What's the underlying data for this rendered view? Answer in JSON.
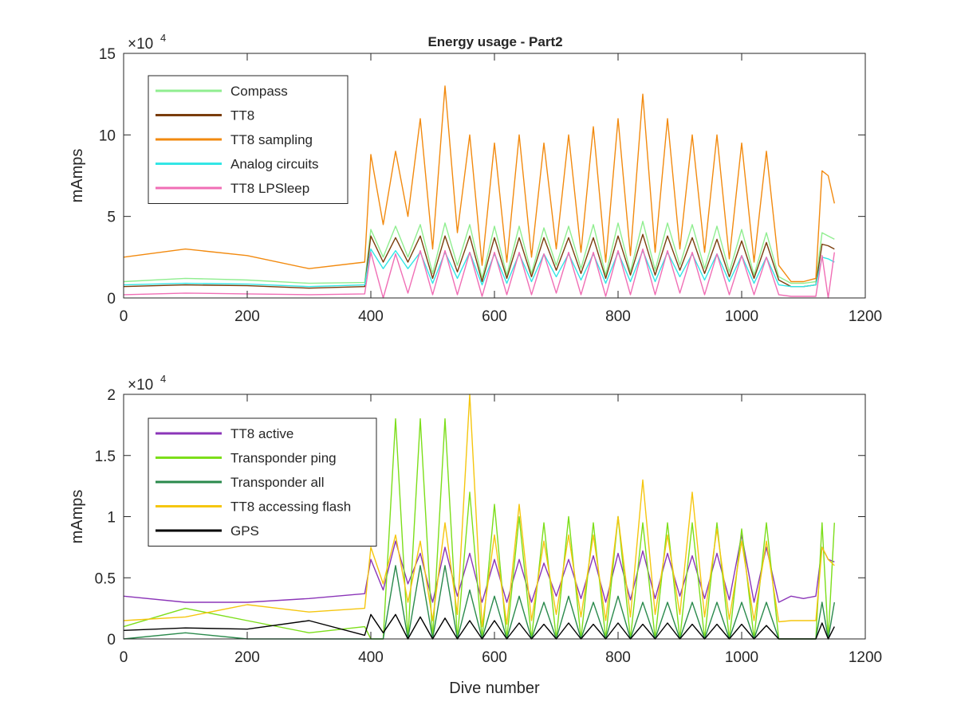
{
  "figure_title": "Energy usage - Part2",
  "chart_data": [
    {
      "type": "line",
      "title": "Energy usage - Part2",
      "xlabel": "",
      "ylabel": "mAmps",
      "xlim": [
        0,
        1200
      ],
      "ylim": [
        0,
        150000
      ],
      "x_ticks": [
        "0",
        "200",
        "400",
        "600",
        "800",
        "1000",
        "1200"
      ],
      "y_ticks": [
        "0",
        "5",
        "10",
        "15"
      ],
      "exponent_label": "×10",
      "exponent_power": "4",
      "grid": false,
      "legend_position": "top-left",
      "x": [
        0,
        100,
        200,
        300,
        390,
        400,
        420,
        440,
        460,
        480,
        500,
        520,
        540,
        560,
        580,
        600,
        620,
        640,
        660,
        680,
        700,
        720,
        740,
        760,
        780,
        800,
        820,
        840,
        860,
        880,
        900,
        920,
        940,
        960,
        980,
        1000,
        1020,
        1040,
        1060,
        1080,
        1100,
        1120,
        1130,
        1140,
        1150
      ],
      "series": [
        {
          "name": "Compass",
          "color": "#90ee90",
          "values": [
            10000,
            12000,
            11000,
            9000,
            9500,
            42000,
            25000,
            44000,
            25000,
            45000,
            15000,
            46000,
            20000,
            45000,
            12000,
            44000,
            14000,
            44000,
            15000,
            43000,
            20000,
            44000,
            18000,
            45000,
            14000,
            46000,
            16000,
            47000,
            17000,
            46000,
            20000,
            45000,
            18000,
            44000,
            16000,
            42000,
            14000,
            40000,
            13000,
            9000,
            9000,
            10000,
            40000,
            38000,
            36000
          ]
        },
        {
          "name": "TT8",
          "color": "#7a3d0c",
          "values": [
            7000,
            8000,
            7500,
            6000,
            7000,
            38000,
            22000,
            37000,
            22000,
            38000,
            12000,
            38000,
            16000,
            38000,
            10000,
            37000,
            12000,
            37000,
            13000,
            37000,
            17000,
            37000,
            15000,
            37000,
            12000,
            38000,
            14000,
            39000,
            14000,
            38000,
            17000,
            37000,
            15000,
            36000,
            13000,
            35000,
            12000,
            34000,
            11000,
            7000,
            7000,
            8000,
            33000,
            32000,
            30000
          ]
        },
        {
          "name": "TT8 sampling",
          "color": "#f28a0f",
          "values": [
            25000,
            30000,
            26000,
            18000,
            22000,
            88000,
            45000,
            90000,
            50000,
            110000,
            30000,
            130000,
            40000,
            100000,
            20000,
            95000,
            22000,
            100000,
            25000,
            95000,
            30000,
            100000,
            28000,
            105000,
            22000,
            110000,
            26000,
            125000,
            28000,
            110000,
            30000,
            100000,
            28000,
            100000,
            24000,
            95000,
            22000,
            90000,
            20000,
            10000,
            10000,
            12000,
            78000,
            75000,
            58000
          ]
        },
        {
          "name": "Analog circuits",
          "color": "#33e6e6",
          "values": [
            8000,
            9000,
            8500,
            7000,
            8000,
            30000,
            18000,
            29000,
            18000,
            28000,
            9000,
            28000,
            12000,
            28000,
            8000,
            27000,
            9000,
            27000,
            10000,
            27000,
            13000,
            27000,
            11000,
            27000,
            9000,
            28000,
            10000,
            29000,
            10000,
            28000,
            13000,
            27000,
            11000,
            27000,
            10000,
            26000,
            9000,
            25000,
            8000,
            7000,
            7000,
            8000,
            25000,
            24000,
            22000
          ]
        },
        {
          "name": "TT8 LPSleep",
          "color": "#f06eb5",
          "values": [
            2000,
            3000,
            2500,
            2000,
            2500,
            28000,
            0,
            27000,
            3000,
            29000,
            2000,
            29000,
            2000,
            28000,
            1000,
            28000,
            2000,
            28000,
            2000,
            27000,
            3000,
            28000,
            2000,
            28000,
            1000,
            29000,
            2000,
            30000,
            2000,
            29000,
            3000,
            28000,
            2000,
            27000,
            2000,
            26000,
            2000,
            25000,
            2000,
            1000,
            1000,
            1000,
            26000,
            0,
            28000
          ]
        }
      ]
    },
    {
      "type": "line",
      "title": "",
      "xlabel": "Dive number",
      "ylabel": "mAmps",
      "xlim": [
        0,
        1200
      ],
      "ylim": [
        0,
        20000
      ],
      "x_ticks": [
        "0",
        "200",
        "400",
        "600",
        "800",
        "1000",
        "1200"
      ],
      "y_ticks": [
        "0",
        "0.5",
        "1",
        "1.5",
        "2"
      ],
      "exponent_label": "×10",
      "exponent_power": "4",
      "grid": false,
      "legend_position": "top-left",
      "x": [
        0,
        100,
        200,
        300,
        390,
        400,
        420,
        440,
        460,
        480,
        500,
        520,
        540,
        560,
        580,
        600,
        620,
        640,
        660,
        680,
        700,
        720,
        740,
        760,
        780,
        800,
        820,
        840,
        860,
        880,
        900,
        920,
        940,
        960,
        980,
        1000,
        1020,
        1040,
        1060,
        1080,
        1100,
        1120,
        1130,
        1140,
        1150
      ],
      "series": [
        {
          "name": "TT8 active",
          "color": "#8b35b8",
          "values": [
            3500,
            3000,
            3000,
            3300,
            3700,
            6500,
            4000,
            8000,
            4500,
            7000,
            3000,
            7500,
            3500,
            7000,
            3000,
            6500,
            3000,
            6500,
            3000,
            6200,
            3500,
            6500,
            3300,
            6800,
            3000,
            7000,
            3200,
            7200,
            3300,
            7000,
            3500,
            6800,
            3300,
            7000,
            3200,
            8500,
            3000,
            7500,
            3000,
            3500,
            3300,
            3500,
            7500,
            6500,
            6300
          ]
        },
        {
          "name": "Transponder ping",
          "color": "#7cde1a",
          "values": [
            1000,
            2500,
            1500,
            500,
            1000,
            0,
            0,
            18000,
            0,
            18000,
            0,
            18000,
            0,
            12000,
            0,
            11000,
            0,
            10000,
            0,
            9500,
            0,
            10000,
            0,
            9500,
            0,
            10000,
            0,
            9500,
            0,
            9500,
            0,
            9500,
            0,
            9500,
            0,
            9000,
            0,
            9500,
            0,
            0,
            0,
            0,
            9500,
            0,
            9500
          ]
        },
        {
          "name": "Transponder all",
          "color": "#2a8a4c",
          "values": [
            0,
            500,
            0,
            0,
            0,
            0,
            0,
            6000,
            0,
            6000,
            0,
            6000,
            0,
            4000,
            0,
            3500,
            0,
            3500,
            0,
            3000,
            0,
            3500,
            0,
            3000,
            0,
            3500,
            0,
            3000,
            0,
            3000,
            0,
            3000,
            0,
            3000,
            0,
            3000,
            0,
            3000,
            0,
            0,
            0,
            0,
            3000,
            0,
            3000
          ]
        },
        {
          "name": "TT8 accessing flash",
          "color": "#f5c60f",
          "values": [
            1500,
            1800,
            2800,
            2200,
            2500,
            7500,
            4500,
            8500,
            3000,
            8000,
            1500,
            9500,
            2000,
            20000,
            1000,
            8500,
            1200,
            11000,
            1500,
            8000,
            2000,
            8500,
            1800,
            8500,
            1500,
            10000,
            1800,
            13000,
            2000,
            8500,
            2000,
            12000,
            1800,
            9000,
            1600,
            8000,
            1500,
            8000,
            1400,
            1500,
            1500,
            1500,
            7500,
            6500,
            6000
          ]
        },
        {
          "name": "GPS",
          "color": "#000000",
          "values": [
            700,
            900,
            800,
            1500,
            300,
            2000,
            500,
            2000,
            0,
            1800,
            0,
            1700,
            0,
            1500,
            0,
            1500,
            0,
            1300,
            0,
            1200,
            0,
            1300,
            0,
            1200,
            0,
            1300,
            0,
            1200,
            0,
            1300,
            0,
            1200,
            0,
            1200,
            0,
            1200,
            0,
            1100,
            0,
            0,
            0,
            0,
            1300,
            0,
            1000
          ]
        }
      ]
    }
  ]
}
